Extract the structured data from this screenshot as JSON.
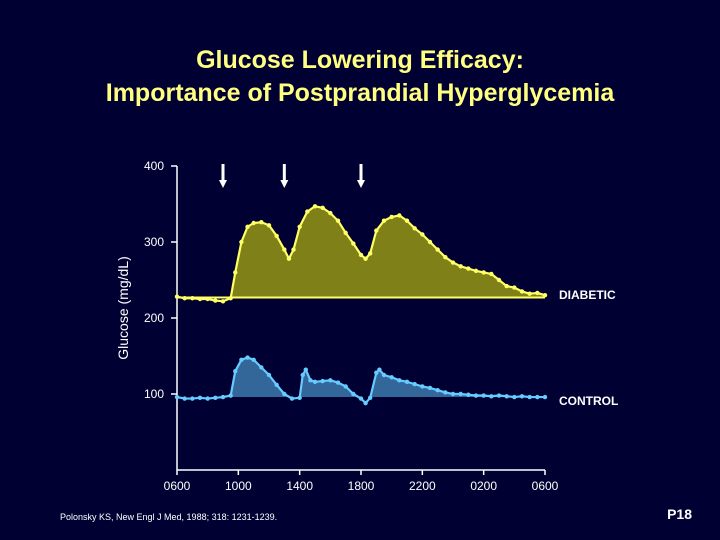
{
  "title": {
    "line1": "Glucose Lowering Efficacy:",
    "line2": "Importance of Postprandial Hyperglycemia"
  },
  "citation": "Polonsky KS, New Engl J Med, 1988; 318: 1231-1239.",
  "slide_number": "P18",
  "colors": {
    "background": "#000033",
    "title": "#ffff80",
    "diabetic_fill": "#808018",
    "diabetic_line": "#ffff66",
    "control_fill": "#336699",
    "control_line": "#66ccff"
  },
  "chart_data": {
    "type": "area",
    "ylabel": "Glucose  (mg/dL)",
    "xlabel": "",
    "x_ticks": [
      "0600",
      "1000",
      "1400",
      "1800",
      "2200",
      "0200",
      "0600"
    ],
    "x_unit": "hours since 0600",
    "xlim": [
      0,
      24
    ],
    "y_ticks": [
      400,
      300,
      200,
      100
    ],
    "ylim": [
      0,
      400
    ],
    "baseline": 227,
    "meal_markers_hours": [
      3,
      7,
      12
    ],
    "grid": false,
    "series": [
      {
        "name": "DIABETIC",
        "points": [
          [
            0,
            228
          ],
          [
            0.5,
            226
          ],
          [
            1,
            226
          ],
          [
            1.5,
            225
          ],
          [
            2,
            225
          ],
          [
            2.5,
            223
          ],
          [
            3,
            222
          ],
          [
            3.5,
            226
          ],
          [
            3.8,
            260
          ],
          [
            4.2,
            300
          ],
          [
            4.6,
            320
          ],
          [
            5,
            325
          ],
          [
            5.5,
            326
          ],
          [
            6,
            322
          ],
          [
            6.5,
            308
          ],
          [
            7,
            290
          ],
          [
            7.3,
            278
          ],
          [
            7.6,
            290
          ],
          [
            8,
            320
          ],
          [
            8.5,
            340
          ],
          [
            9,
            347
          ],
          [
            9.5,
            345
          ],
          [
            10,
            338
          ],
          [
            10.5,
            328
          ],
          [
            11,
            312
          ],
          [
            11.5,
            298
          ],
          [
            12,
            283
          ],
          [
            12.3,
            278
          ],
          [
            12.6,
            285
          ],
          [
            13,
            315
          ],
          [
            13.5,
            328
          ],
          [
            14,
            333
          ],
          [
            14.5,
            335
          ],
          [
            15,
            328
          ],
          [
            15.5,
            318
          ],
          [
            16,
            310
          ],
          [
            16.5,
            300
          ],
          [
            17,
            290
          ],
          [
            17.5,
            280
          ],
          [
            18,
            273
          ],
          [
            18.5,
            268
          ],
          [
            19,
            265
          ],
          [
            19.5,
            262
          ],
          [
            20,
            260
          ],
          [
            20.5,
            258
          ],
          [
            21,
            250
          ],
          [
            21.5,
            242
          ],
          [
            22,
            240
          ],
          [
            22.5,
            235
          ],
          [
            23,
            232
          ],
          [
            23.5,
            233
          ],
          [
            24,
            230
          ]
        ]
      },
      {
        "name": "CONTROL",
        "points": [
          [
            0,
            96
          ],
          [
            0.5,
            94
          ],
          [
            1,
            94
          ],
          [
            1.5,
            95
          ],
          [
            2,
            94
          ],
          [
            2.5,
            95
          ],
          [
            3,
            96
          ],
          [
            3.5,
            98
          ],
          [
            3.8,
            130
          ],
          [
            4.2,
            145
          ],
          [
            4.6,
            148
          ],
          [
            5,
            145
          ],
          [
            5.5,
            135
          ],
          [
            6,
            125
          ],
          [
            6.5,
            112
          ],
          [
            7,
            100
          ],
          [
            7.5,
            94
          ],
          [
            8,
            95
          ],
          [
            8.2,
            125
          ],
          [
            8.4,
            132
          ],
          [
            8.7,
            118
          ],
          [
            9,
            116
          ],
          [
            9.5,
            117
          ],
          [
            10,
            118
          ],
          [
            10.5,
            115
          ],
          [
            11,
            110
          ],
          [
            11.5,
            100
          ],
          [
            12,
            94
          ],
          [
            12.3,
            88
          ],
          [
            12.6,
            95
          ],
          [
            13,
            128
          ],
          [
            13.2,
            132
          ],
          [
            13.5,
            125
          ],
          [
            14,
            122
          ],
          [
            14.5,
            118
          ],
          [
            15,
            116
          ],
          [
            15.5,
            113
          ],
          [
            16,
            110
          ],
          [
            16.5,
            108
          ],
          [
            17,
            105
          ],
          [
            17.5,
            102
          ],
          [
            18,
            100
          ],
          [
            18.5,
            100
          ],
          [
            19,
            99
          ],
          [
            19.5,
            98
          ],
          [
            20,
            98
          ],
          [
            20.5,
            97
          ],
          [
            21,
            98
          ],
          [
            21.5,
            97
          ],
          [
            22,
            96
          ],
          [
            22.5,
            97
          ],
          [
            23,
            96
          ],
          [
            23.5,
            96
          ],
          [
            24,
            96
          ]
        ]
      }
    ]
  }
}
